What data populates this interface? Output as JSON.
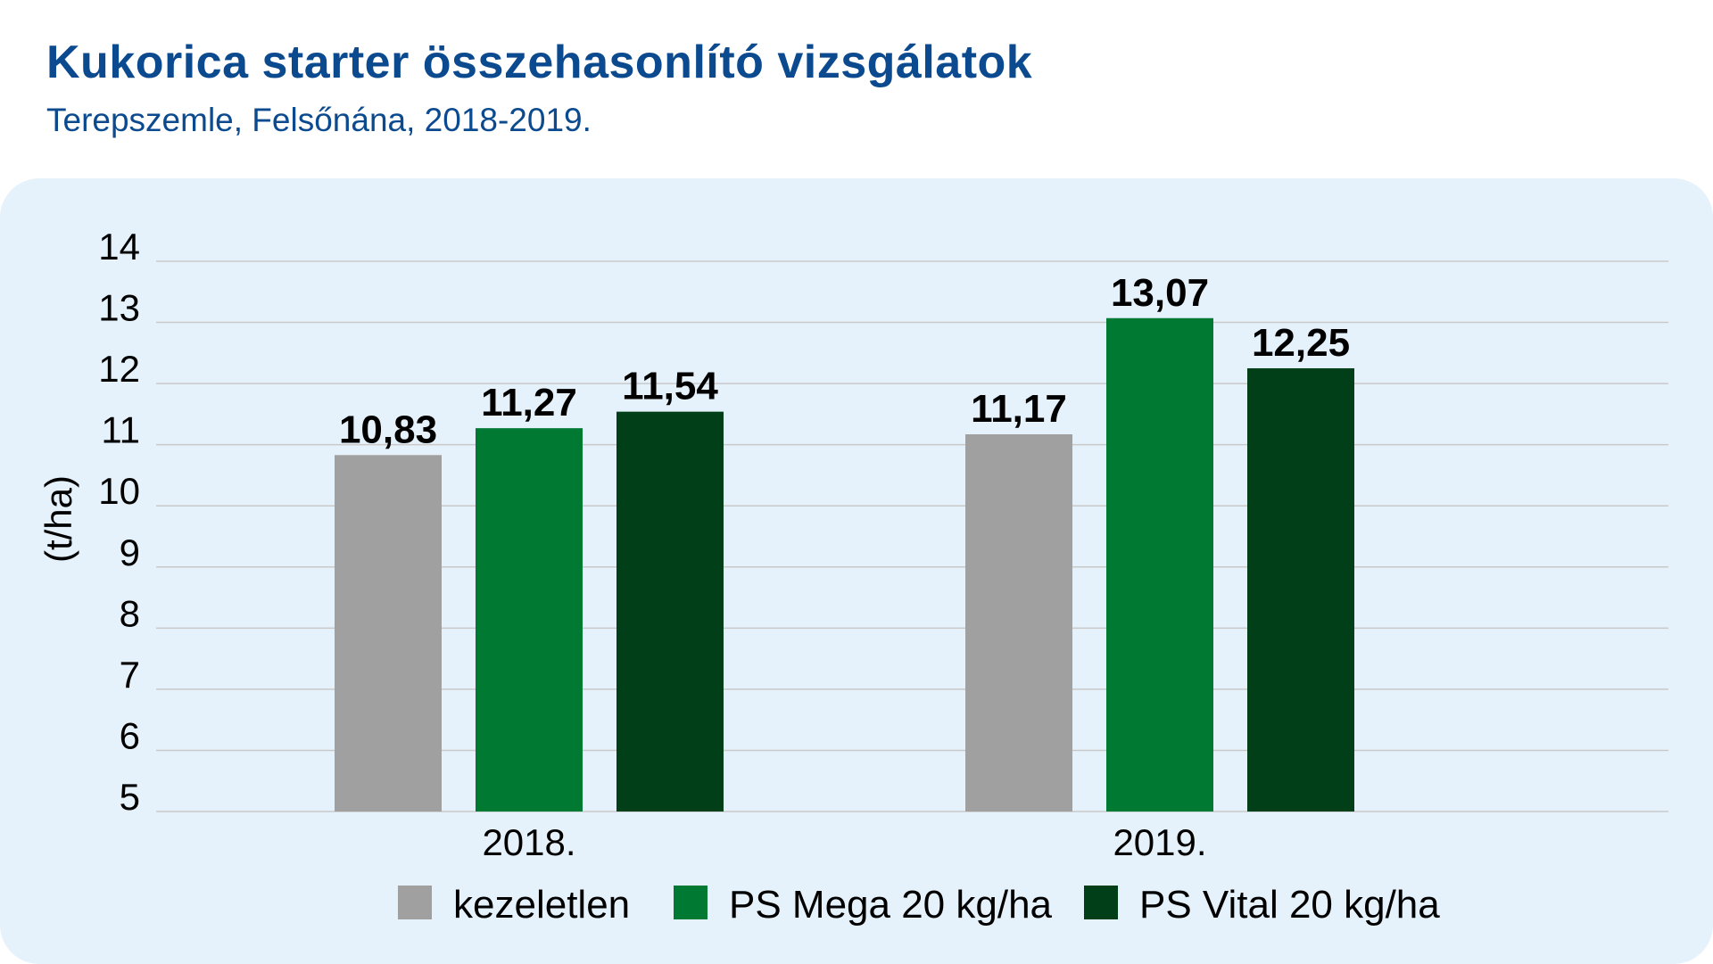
{
  "header": {
    "title": "Kukorica starter összehasonlító vizsgálatok",
    "subtitle": "Terepszemle, Felsőnána, 2018-2019."
  },
  "chart_data": {
    "type": "bar",
    "ylabel": "(t/ha)",
    "ylim": [
      5,
      14
    ],
    "yticks": [
      5,
      6,
      7,
      8,
      9,
      10,
      11,
      12,
      13,
      14
    ],
    "grid": true,
    "legend_position": "bottom",
    "categories": [
      "2018.",
      "2019."
    ],
    "series": [
      {
        "name": "kezeletlen",
        "color": "#a0a0a0",
        "values": [
          10.83,
          11.17
        ],
        "labels": [
          "10,83",
          "11,17"
        ]
      },
      {
        "name": "PS Mega 20 kg/ha",
        "color": "#007a33",
        "values": [
          11.27,
          13.07
        ],
        "labels": [
          "11,27",
          "13,07"
        ]
      },
      {
        "name": "PS Vital 20 kg/ha",
        "color": "#003f17",
        "values": [
          11.54,
          12.25
        ],
        "labels": [
          "11,54",
          "12,25"
        ]
      }
    ]
  },
  "colors": {
    "title": "#0c4a8f",
    "panel_background": "#e5f2fb",
    "gridline": "#c9c9c9"
  }
}
